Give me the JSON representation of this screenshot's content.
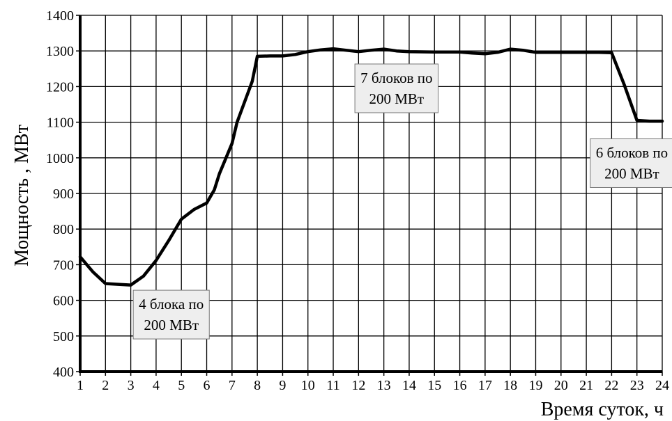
{
  "chart_data": {
    "type": "line",
    "xlabel": "Время суток, ч",
    "ylabel": "Мощность , МВт",
    "xlim": [
      1,
      24
    ],
    "ylim": [
      400,
      1400
    ],
    "x_ticks": [
      "1",
      "2",
      "3",
      "4",
      "5",
      "6",
      "7",
      "8",
      "9",
      "10",
      "11",
      "12",
      "13",
      "14",
      "15",
      "16",
      "17",
      "18",
      "19",
      "20",
      "21",
      "22",
      "23",
      "24"
    ],
    "y_ticks": [
      "400",
      "500",
      "600",
      "700",
      "800",
      "900",
      "1000",
      "1100",
      "1200",
      "1300",
      "1400"
    ],
    "grid": true,
    "series": [
      {
        "x": [
          1,
          1.5,
          2,
          2.5,
          3,
          3.5,
          4,
          4.5,
          5,
          5.5,
          6,
          6.3,
          6.5,
          7,
          7.2,
          7.8,
          8,
          8.5,
          9,
          9.5,
          10,
          10.5,
          11,
          11.5,
          12,
          12.5,
          13,
          13.5,
          14,
          15,
          16,
          16.5,
          17,
          17.5,
          18,
          18.5,
          19,
          20,
          21,
          21.5,
          22,
          22.5,
          23,
          23.5,
          24
        ],
        "y": [
          722,
          680,
          647,
          645,
          643,
          668,
          712,
          768,
          828,
          855,
          873,
          910,
          955,
          1040,
          1100,
          1215,
          1285,
          1286,
          1286,
          1290,
          1298,
          1303,
          1306,
          1302,
          1298,
          1302,
          1305,
          1300,
          1298,
          1297,
          1297,
          1294,
          1292,
          1296,
          1305,
          1302,
          1296,
          1296,
          1296,
          1296,
          1295,
          1205,
          1105,
          1103,
          1103
        ]
      }
    ],
    "annotations": [
      {
        "lines": [
          "4 блока по",
          "200 МВт"
        ],
        "x": 4.6,
        "y": 560
      },
      {
        "lines": [
          "7 блоков по",
          "200 МВт"
        ],
        "x": 13.5,
        "y": 1195
      },
      {
        "lines": [
          "6 блоков по",
          "200 МВт"
        ],
        "x": 22.8,
        "y": 985
      }
    ],
    "colors": {
      "line": "#000000",
      "grid": "#000000",
      "annotation_fill": "#eeeeee",
      "annotation_border": "#777777"
    }
  }
}
